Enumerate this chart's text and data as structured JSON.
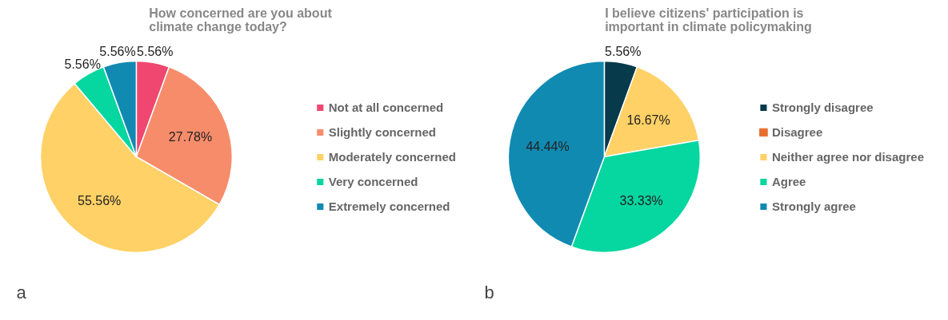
{
  "chart_data": [
    {
      "type": "pie",
      "title": "How concerned are you about climate change today?",
      "categories": [
        "Not at all concerned",
        "Slightly concerned",
        "Moderately concerned",
        "Very concerned",
        "Extremely concerned"
      ],
      "values": [
        5.56,
        27.78,
        55.56,
        5.56,
        5.56
      ],
      "colors": [
        "#ef476f",
        "#f78c6b",
        "#ffd166",
        "#06d6a0",
        "#118ab2"
      ],
      "value_labels": [
        "5.56%",
        "27.78%",
        "55.56%",
        "5.56%",
        "5.56%"
      ],
      "legend": "right",
      "annotations": [
        "a"
      ]
    },
    {
      "type": "pie",
      "title": "I  believe citizens' participation is important in climate policymaking",
      "categories": [
        "Strongly disagree",
        "Disagree",
        "Neither agree nor disagree",
        "Agree",
        "Strongly agree"
      ],
      "values": [
        5.56,
        0,
        16.67,
        33.33,
        44.44
      ],
      "colors": [
        "#073b4c",
        "#e76f2e",
        "#ffd166",
        "#06d6a0",
        "#118ab2"
      ],
      "value_labels": [
        "5.56%",
        null,
        "16.67%",
        "33.33%",
        "44.44%"
      ],
      "legend": "right",
      "annotations": [
        "b"
      ]
    }
  ]
}
